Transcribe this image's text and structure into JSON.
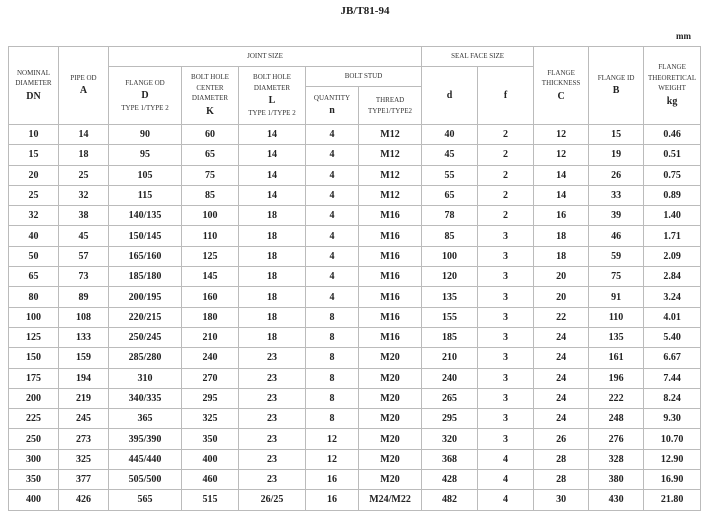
{
  "title": "JB/T81-94",
  "unit": "mm",
  "headers": {
    "nominal": "NOMINAL DIAMETER",
    "nominal_sym": "DN",
    "pipe": "PIPE OD",
    "pipe_sym": "A",
    "joint": "JOINT SIZE",
    "flange_od": "FLANGE OD",
    "flange_od_sym": "D",
    "flange_od_type": "TYPE 1/TYPE 2",
    "bhc": "BOLT HOLE CENTER DIAMETER",
    "bhc_sym": "K",
    "bhd": "BOLT HOLE DIAMETER",
    "bhd_sym": "L",
    "bhd_type": "TYPE 1/TYPE 2",
    "bolt": "BOLT STUD",
    "qty": "QUANTITY",
    "qty_sym": "n",
    "thread": "THREAD TYPE1/TYPE2",
    "seal": "SEAL FACE SIZE",
    "seal_d": "d",
    "seal_f": "f",
    "thick": "FLANGE THICKNESS",
    "thick_sym": "C",
    "fid": "FLANGE ID",
    "fid_sym": "B",
    "weight": "FLANGE THEORETICAL WEIGHT",
    "weight_sym": "kg"
  },
  "rows": [
    [
      "10",
      "14",
      "90",
      "60",
      "14",
      "4",
      "M12",
      "40",
      "2",
      "12",
      "15",
      "0.46"
    ],
    [
      "15",
      "18",
      "95",
      "65",
      "14",
      "4",
      "M12",
      "45",
      "2",
      "12",
      "19",
      "0.51"
    ],
    [
      "20",
      "25",
      "105",
      "75",
      "14",
      "4",
      "M12",
      "55",
      "2",
      "14",
      "26",
      "0.75"
    ],
    [
      "25",
      "32",
      "115",
      "85",
      "14",
      "4",
      "M12",
      "65",
      "2",
      "14",
      "33",
      "0.89"
    ],
    [
      "32",
      "38",
      "140/135",
      "100",
      "18",
      "4",
      "M16",
      "78",
      "2",
      "16",
      "39",
      "1.40"
    ],
    [
      "40",
      "45",
      "150/145",
      "110",
      "18",
      "4",
      "M16",
      "85",
      "3",
      "18",
      "46",
      "1.71"
    ],
    [
      "50",
      "57",
      "165/160",
      "125",
      "18",
      "4",
      "M16",
      "100",
      "3",
      "18",
      "59",
      "2.09"
    ],
    [
      "65",
      "73",
      "185/180",
      "145",
      "18",
      "4",
      "M16",
      "120",
      "3",
      "20",
      "75",
      "2.84"
    ],
    [
      "80",
      "89",
      "200/195",
      "160",
      "18",
      "4",
      "M16",
      "135",
      "3",
      "20",
      "91",
      "3.24"
    ],
    [
      "100",
      "108",
      "220/215",
      "180",
      "18",
      "8",
      "M16",
      "155",
      "3",
      "22",
      "110",
      "4.01"
    ],
    [
      "125",
      "133",
      "250/245",
      "210",
      "18",
      "8",
      "M16",
      "185",
      "3",
      "24",
      "135",
      "5.40"
    ],
    [
      "150",
      "159",
      "285/280",
      "240",
      "23",
      "8",
      "M20",
      "210",
      "3",
      "24",
      "161",
      "6.67"
    ],
    [
      "175",
      "194",
      "310",
      "270",
      "23",
      "8",
      "M20",
      "240",
      "3",
      "24",
      "196",
      "7.44"
    ],
    [
      "200",
      "219",
      "340/335",
      "295",
      "23",
      "8",
      "M20",
      "265",
      "3",
      "24",
      "222",
      "8.24"
    ],
    [
      "225",
      "245",
      "365",
      "325",
      "23",
      "8",
      "M20",
      "295",
      "3",
      "24",
      "248",
      "9.30"
    ],
    [
      "250",
      "273",
      "395/390",
      "350",
      "23",
      "12",
      "M20",
      "320",
      "3",
      "26",
      "276",
      "10.70"
    ],
    [
      "300",
      "325",
      "445/440",
      "400",
      "23",
      "12",
      "M20",
      "368",
      "4",
      "28",
      "328",
      "12.90"
    ],
    [
      "350",
      "377",
      "505/500",
      "460",
      "23",
      "16",
      "M20",
      "428",
      "4",
      "28",
      "380",
      "16.90"
    ],
    [
      "400",
      "426",
      "565",
      "515",
      "26/25",
      "16",
      "M24/M22",
      "482",
      "4",
      "30",
      "430",
      "21.80"
    ]
  ]
}
